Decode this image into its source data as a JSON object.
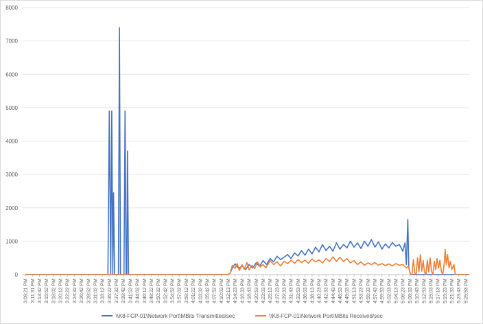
{
  "chart_data": {
    "type": "line",
    "title": "",
    "xlabel": "",
    "ylabel": "",
    "ylim": [
      0,
      8000
    ],
    "yticks": [
      0,
      1000,
      2000,
      3000,
      4000,
      5000,
      6000,
      7000,
      8000
    ],
    "grid": true,
    "legend_position": "bottom",
    "x": [
      "3:09:21 PM",
      "3:11:31 PM",
      "3:13:42 PM",
      "3:15:52 PM",
      "3:18:02 PM",
      "3:20:12 PM",
      "3:22:22 PM",
      "3:24:32 PM",
      "3:26:42 PM",
      "3:28:52 PM",
      "3:31:02 PM",
      "3:33:12 PM",
      "3:35:22 PM",
      "3:37:32 PM",
      "3:39:42 PM",
      "3:41:52 PM",
      "3:44:02 PM",
      "3:46:12 PM",
      "3:48:22 PM",
      "3:50:32 PM",
      "3:52:42 PM",
      "3:54:52 PM",
      "3:57:02 PM",
      "3:59:12 PM",
      "4:01:22 PM",
      "4:03:32 PM",
      "4:05:42 PM",
      "4:07:52 PM",
      "4:10:02 PM",
      "4:12:13 PM",
      "4:14:23 PM",
      "4:16:33 PM",
      "4:18:43 PM",
      "4:20:53 PM",
      "4:23:03 PM",
      "4:25:13 PM",
      "4:27:23 PM",
      "4:29:33 PM",
      "4:31:43 PM",
      "4:33:53 PM",
      "4:36:03 PM",
      "4:38:13 PM",
      "4:40:23 PM",
      "4:42:33 PM",
      "4:44:43 PM",
      "4:46:53 PM",
      "4:49:03 PM",
      "4:51:13 PM",
      "4:53:23 PM",
      "4:55:33 PM",
      "4:57:43 PM",
      "4:59:53 PM",
      "5:02:03 PM",
      "5:04:13 PM",
      "5:06:23 PM",
      "5:08:33 PM",
      "5:10:43 PM",
      "5:12:53 PM",
      "5:15:03 PM",
      "5:17:13 PM",
      "5:19:23 PM",
      "5:21:33 PM",
      "5:23:43 PM",
      "5:25:53 PM"
    ],
    "series": [
      {
        "name": "\\\\K8-FCP-01\\Network Port\\MBits Transmitted/sec",
        "color": "#4472c4",
        "points": [
          [
            0,
            0
          ],
          [
            11.8,
            0
          ],
          [
            12.0,
            4900
          ],
          [
            12.2,
            0
          ],
          [
            12.35,
            4900
          ],
          [
            12.5,
            0
          ],
          [
            12.6,
            2450
          ],
          [
            12.75,
            0
          ],
          [
            13.3,
            0
          ],
          [
            13.45,
            7400
          ],
          [
            13.6,
            0
          ],
          [
            14.1,
            0
          ],
          [
            14.25,
            4900
          ],
          [
            14.4,
            0
          ],
          [
            14.5,
            0
          ],
          [
            14.6,
            3700
          ],
          [
            14.75,
            0
          ],
          [
            29.0,
            0
          ],
          [
            29.3,
            50
          ],
          [
            29.6,
            200
          ],
          [
            30,
            320
          ],
          [
            30.5,
            180
          ],
          [
            31,
            260
          ],
          [
            31.5,
            150
          ],
          [
            32,
            300
          ],
          [
            32.5,
            200
          ],
          [
            33,
            350
          ],
          [
            33.5,
            250
          ],
          [
            34,
            420
          ],
          [
            34.5,
            300
          ],
          [
            35,
            480
          ],
          [
            35.5,
            380
          ],
          [
            36,
            550
          ],
          [
            36.5,
            450
          ],
          [
            37,
            520
          ],
          [
            37.5,
            600
          ],
          [
            38,
            480
          ],
          [
            38.5,
            650
          ],
          [
            39,
            560
          ],
          [
            39.5,
            720
          ],
          [
            40,
            580
          ],
          [
            40.5,
            760
          ],
          [
            41,
            620
          ],
          [
            41.5,
            820
          ],
          [
            42,
            680
          ],
          [
            42.5,
            900
          ],
          [
            43,
            720
          ],
          [
            43.5,
            850
          ],
          [
            44,
            700
          ],
          [
            44.5,
            950
          ],
          [
            45,
            760
          ],
          [
            45.5,
            900
          ],
          [
            46,
            800
          ],
          [
            46.5,
            1000
          ],
          [
            47,
            820
          ],
          [
            47.5,
            950
          ],
          [
            48,
            780
          ],
          [
            48.5,
            1000
          ],
          [
            49,
            850
          ],
          [
            49.5,
            1050
          ],
          [
            50,
            820
          ],
          [
            50.5,
            980
          ],
          [
            51,
            760
          ],
          [
            51.5,
            920
          ],
          [
            52,
            800
          ],
          [
            52.5,
            960
          ],
          [
            53,
            850
          ],
          [
            53.5,
            900
          ],
          [
            54,
            700
          ],
          [
            54.3,
            950
          ],
          [
            54.5,
            300
          ],
          [
            54.7,
            1650
          ],
          [
            54.85,
            200
          ],
          [
            55.1,
            0
          ],
          [
            63.5,
            0
          ]
        ]
      },
      {
        "name": "\\\\K8-FCP-01\\Network Port\\MBits Received/sec",
        "color": "#ed7d31",
        "points": [
          [
            0,
            0
          ],
          [
            29.0,
            0
          ],
          [
            29.3,
            50
          ],
          [
            29.6,
            280
          ],
          [
            30,
            180
          ],
          [
            30.3,
            330
          ],
          [
            30.6,
            120
          ],
          [
            31,
            300
          ],
          [
            31.3,
            160
          ],
          [
            31.7,
            360
          ],
          [
            32,
            140
          ],
          [
            32.4,
            280
          ],
          [
            32.8,
            180
          ],
          [
            33.2,
            380
          ],
          [
            33.6,
            230
          ],
          [
            34,
            300
          ],
          [
            34.4,
            200
          ],
          [
            35,
            420
          ],
          [
            35.5,
            300
          ],
          [
            36,
            380
          ],
          [
            36.5,
            260
          ],
          [
            37,
            400
          ],
          [
            37.5,
            330
          ],
          [
            38,
            430
          ],
          [
            38.5,
            340
          ],
          [
            39,
            450
          ],
          [
            39.5,
            360
          ],
          [
            40,
            430
          ],
          [
            40.5,
            340
          ],
          [
            41,
            470
          ],
          [
            41.5,
            380
          ],
          [
            42,
            440
          ],
          [
            42.5,
            350
          ],
          [
            43,
            480
          ],
          [
            43.5,
            390
          ],
          [
            44,
            530
          ],
          [
            44.5,
            400
          ],
          [
            45,
            520
          ],
          [
            45.5,
            390
          ],
          [
            46,
            480
          ],
          [
            46.5,
            350
          ],
          [
            47,
            420
          ],
          [
            47.5,
            300
          ],
          [
            48,
            380
          ],
          [
            48.5,
            280
          ],
          [
            49,
            350
          ],
          [
            49.5,
            300
          ],
          [
            50,
            360
          ],
          [
            50.5,
            280
          ],
          [
            51,
            330
          ],
          [
            51.5,
            270
          ],
          [
            52,
            320
          ],
          [
            52.5,
            260
          ],
          [
            53,
            330
          ],
          [
            53.5,
            280
          ],
          [
            54,
            300
          ],
          [
            54.5,
            200
          ],
          [
            54.8,
            260
          ],
          [
            55.1,
            0
          ],
          [
            55.3,
            0
          ],
          [
            55.5,
            450
          ],
          [
            55.7,
            50
          ],
          [
            55.9,
            0
          ],
          [
            56.1,
            500
          ],
          [
            56.3,
            80
          ],
          [
            56.5,
            600
          ],
          [
            56.7,
            100
          ],
          [
            56.9,
            420
          ],
          [
            57.1,
            60
          ],
          [
            57.3,
            0
          ],
          [
            57.5,
            430
          ],
          [
            57.7,
            80
          ],
          [
            57.9,
            500
          ],
          [
            58.1,
            100
          ],
          [
            58.3,
            0
          ],
          [
            58.5,
            400
          ],
          [
            58.7,
            150
          ],
          [
            58.9,
            480
          ],
          [
            59.1,
            200
          ],
          [
            59.3,
            430
          ],
          [
            59.5,
            90
          ],
          [
            59.7,
            0
          ],
          [
            59.9,
            300
          ],
          [
            60.05,
            750
          ],
          [
            60.2,
            300
          ],
          [
            60.4,
            600
          ],
          [
            60.6,
            200
          ],
          [
            60.8,
            400
          ],
          [
            61.0,
            150
          ],
          [
            61.3,
            300
          ],
          [
            61.5,
            0
          ],
          [
            63.5,
            0
          ]
        ]
      }
    ]
  }
}
